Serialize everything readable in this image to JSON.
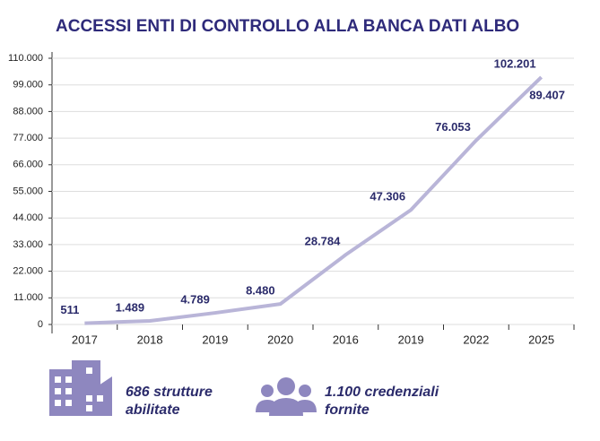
{
  "chart_data": {
    "type": "line",
    "title": "ACCESSI ENTI DI CONTROLLO ALLA BANCA DATI ALBO",
    "categories": [
      "2017",
      "2018",
      "2019",
      "2020",
      "2016",
      "2019",
      "2022",
      "2025"
    ],
    "series": [
      {
        "name": "Accessi",
        "color": "#b9b5d8",
        "values": [
          511,
          1489,
          4789,
          8480,
          28784,
          47306,
          76053,
          102201
        ],
        "value_labels": [
          "511",
          "1.489",
          "4.789",
          "8.480",
          "28.784",
          "47.306",
          "76.053",
          "102.201"
        ]
      }
    ],
    "annotations": [
      "89.407"
    ],
    "ylim": [
      0,
      110000
    ],
    "yticks": [
      0,
      {
        "value": 11000,
        "label": "11.000"
      },
      {
        "value": 22000,
        "label": "22.000"
      },
      {
        "value": 33000,
        "label": "33.000"
      },
      {
        "value": 44000,
        "label": "44.000"
      },
      {
        "value": 55000,
        "label": "55.000"
      },
      {
        "value": 66000,
        "label": "66.000"
      },
      {
        "value": 77000,
        "label": "77.000"
      },
      {
        "value": 88000,
        "label": "88.000"
      },
      {
        "value": 99000,
        "label": "99.000"
      },
      {
        "value": 110000,
        "label": "110.000"
      }
    ],
    "grid": true
  },
  "footer": [
    {
      "line1": "686 strutture",
      "line2": "abilitate"
    },
    {
      "line1": "1.100 credenziali",
      "line2": "fornite"
    }
  ]
}
